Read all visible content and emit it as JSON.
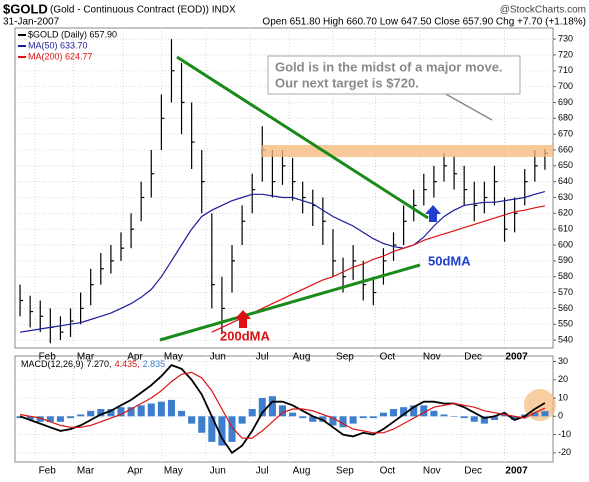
{
  "chart_data": [
    {
      "type": "ohlc",
      "title": "$GOLD",
      "subtitle": "(Gold - Continuous Contract (EOD)) INDX",
      "source": "@StockCharts.com",
      "date": "31-Jan-2007",
      "quote": "Open 651.80 High 660.70 Low 647.50 Close 657.90 Chg +7.70 (+1.18%)",
      "annotations": [
        "Gold is in the midst of a major move.",
        "Our next target is $720.",
        "50dMA",
        "200dMA"
      ],
      "x": [
        0,
        1,
        2,
        3,
        4,
        5,
        6,
        7,
        8,
        9,
        10,
        11,
        12,
        13,
        14,
        15,
        16,
        17,
        18,
        19,
        20,
        21,
        22,
        23,
        24,
        25,
        26,
        27,
        28,
        29,
        30,
        31,
        32,
        33,
        34,
        35,
        36,
        37,
        38,
        39,
        40,
        41,
        42,
        43,
        44,
        45,
        46,
        47,
        48,
        49,
        50,
        51,
        52
      ],
      "xlim": [
        -0.5,
        52.8
      ],
      "xticks": [
        {
          "value": 1.5,
          "label": "Feb"
        },
        {
          "value": 5.3,
          "label": "Mar"
        },
        {
          "value": 10.2,
          "label": "Apr"
        },
        {
          "value": 14,
          "label": "May"
        },
        {
          "value": 18.4,
          "label": "Jun"
        },
        {
          "value": 22.8,
          "label": "Jul"
        },
        {
          "value": 26.7,
          "label": "Aug"
        },
        {
          "value": 31,
          "label": "Sep"
        },
        {
          "value": 35.2,
          "label": "Oct"
        },
        {
          "value": 39.6,
          "label": "Nov"
        },
        {
          "value": 43.7,
          "label": "Dec"
        },
        {
          "value": 48,
          "label": "2007"
        }
      ],
      "ylim": [
        535,
        737
      ],
      "yticks": [
        540,
        550,
        560,
        570,
        580,
        590,
        600,
        610,
        620,
        630,
        640,
        650,
        660,
        670,
        680,
        690,
        700,
        710,
        720,
        730
      ],
      "grid": true,
      "series": [
        {
          "name": "$GOLD (Daily) 657.90",
          "color": "#000000",
          "high": [
            575,
            568,
            565,
            560,
            555,
            560,
            570,
            585,
            595,
            600,
            608,
            620,
            640,
            660,
            695,
            730,
            715,
            690,
            660,
            620,
            580,
            600,
            625,
            645,
            675,
            660,
            660,
            655,
            640,
            635,
            630,
            610,
            592,
            600,
            590,
            580,
            598,
            608,
            625,
            635,
            645,
            650,
            658,
            656,
            650,
            640,
            640,
            650,
            630,
            630,
            648,
            660,
            660.7
          ],
          "low": [
            555,
            548,
            545,
            538,
            540,
            542,
            550,
            562,
            575,
            582,
            590,
            598,
            615,
            630,
            660,
            690,
            670,
            648,
            620,
            560,
            545,
            570,
            600,
            620,
            640,
            630,
            638,
            628,
            620,
            612,
            600,
            580,
            570,
            578,
            565,
            562,
            575,
            590,
            600,
            615,
            625,
            630,
            640,
            635,
            625,
            615,
            620,
            625,
            602,
            608,
            625,
            640,
            647.5
          ],
          "close": [
            565,
            558,
            555,
            548,
            545,
            552,
            560,
            575,
            585,
            590,
            598,
            610,
            630,
            645,
            680,
            710,
            690,
            665,
            640,
            575,
            560,
            590,
            615,
            635,
            660,
            640,
            650,
            640,
            630,
            625,
            615,
            590,
            580,
            590,
            575,
            570,
            590,
            600,
            615,
            625,
            635,
            640,
            650,
            645,
            635,
            625,
            630,
            640,
            610,
            620,
            640,
            650,
            657.9
          ]
        },
        {
          "name": "MA(50) 633.70",
          "color": "#1c1c9c",
          "values": [
            545,
            546,
            547,
            548,
            549,
            550,
            551,
            553,
            555,
            557,
            560,
            563,
            567,
            572,
            580,
            590,
            600,
            610,
            618,
            622,
            625,
            628,
            630,
            632,
            632,
            631,
            630,
            630,
            628,
            626,
            622,
            618,
            615,
            612,
            608,
            604,
            601,
            599,
            598,
            600,
            605,
            612,
            618,
            622,
            625,
            626,
            627,
            627,
            628,
            629,
            630,
            632,
            633.7
          ]
        },
        {
          "name": "MA(200) 624.77",
          "color": "#dd1111",
          "values": [
            null,
            null,
            null,
            null,
            null,
            null,
            null,
            null,
            null,
            null,
            null,
            null,
            null,
            null,
            null,
            null,
            null,
            null,
            null,
            545,
            548,
            551,
            554,
            557,
            560,
            563,
            566,
            569,
            572,
            575,
            578,
            580,
            583,
            586,
            588,
            591,
            593,
            596,
            598,
            600,
            603,
            605,
            607,
            609,
            611,
            613,
            615,
            617,
            619,
            621,
            622,
            623.5,
            624.77
          ]
        }
      ]
    },
    {
      "type": "macd",
      "label": "MACD(12,26,9)",
      "x": [
        0,
        1,
        2,
        3,
        4,
        5,
        6,
        7,
        8,
        9,
        10,
        11,
        12,
        13,
        14,
        15,
        16,
        17,
        18,
        19,
        20,
        21,
        22,
        23,
        24,
        25,
        26,
        27,
        28,
        29,
        30,
        31,
        32,
        33,
        34,
        35,
        36,
        37,
        38,
        39,
        40,
        41,
        42,
        43,
        44,
        45,
        46,
        47,
        48,
        49,
        50,
        51,
        52
      ],
      "xlim": [
        -0.5,
        52.8
      ],
      "xticks": [
        {
          "value": 1.5,
          "label": "Feb"
        },
        {
          "value": 5.3,
          "label": "Mar"
        },
        {
          "value": 10.2,
          "label": "Apr"
        },
        {
          "value": 14,
          "label": "May"
        },
        {
          "value": 18.4,
          "label": "Jun"
        },
        {
          "value": 22.8,
          "label": "Jul"
        },
        {
          "value": 26.7,
          "label": "Aug"
        },
        {
          "value": 31,
          "label": "Sep"
        },
        {
          "value": 35.2,
          "label": "Oct"
        },
        {
          "value": 39.6,
          "label": "Nov"
        },
        {
          "value": 43.7,
          "label": "Dec"
        },
        {
          "value": 48,
          "label": "2007"
        }
      ],
      "ylim": [
        -25,
        33
      ],
      "yticks": [
        -20,
        -10,
        0,
        10,
        20,
        30
      ],
      "grid": true,
      "series": [
        {
          "name": "7.270,",
          "color": "#000000",
          "kind": "line",
          "values": [
            0,
            -2,
            -4,
            -6,
            -8,
            -7,
            -5,
            -2,
            1,
            3,
            6,
            9,
            13,
            17,
            22,
            28,
            26,
            20,
            12,
            0,
            -12,
            -20,
            -16,
            -8,
            2,
            8,
            8,
            6,
            3,
            0,
            -2,
            -6,
            -10,
            -11,
            -9,
            -10,
            -7,
            -3,
            1,
            5,
            8,
            8,
            7,
            7,
            5,
            2,
            -1,
            0,
            2,
            -2,
            0,
            4,
            7.27
          ]
        },
        {
          "name": "4.435,",
          "color": "#dd1111",
          "kind": "line",
          "values": [
            1,
            0,
            -1,
            -3,
            -5,
            -6,
            -6,
            -5,
            -3,
            -1,
            1,
            4,
            7,
            10,
            14,
            19,
            23,
            24,
            21,
            14,
            4,
            -6,
            -12,
            -12,
            -8,
            -3,
            2,
            4,
            4,
            3,
            1,
            -1,
            -4,
            -7,
            -8,
            -9,
            -9,
            -7,
            -4,
            -1,
            2,
            5,
            6,
            7,
            6,
            5,
            3,
            2,
            1,
            0,
            -1,
            2,
            4.435
          ]
        },
        {
          "name": "2.835",
          "color": "#3d7fcc",
          "kind": "histogram",
          "values": [
            -1,
            -2,
            -3,
            -3,
            -3,
            -1,
            1,
            3,
            4,
            4,
            5,
            5,
            6,
            7,
            8,
            9,
            3,
            -4,
            -9,
            -14,
            -16,
            -14,
            -4,
            4,
            10,
            11,
            6,
            2,
            -1,
            -3,
            -3,
            -5,
            -6,
            -4,
            -1,
            -1,
            2,
            4,
            5,
            6,
            6,
            3,
            1,
            0,
            -1,
            -3,
            -4,
            -2,
            1,
            -2,
            1,
            2,
            2.835
          ]
        }
      ]
    }
  ]
}
